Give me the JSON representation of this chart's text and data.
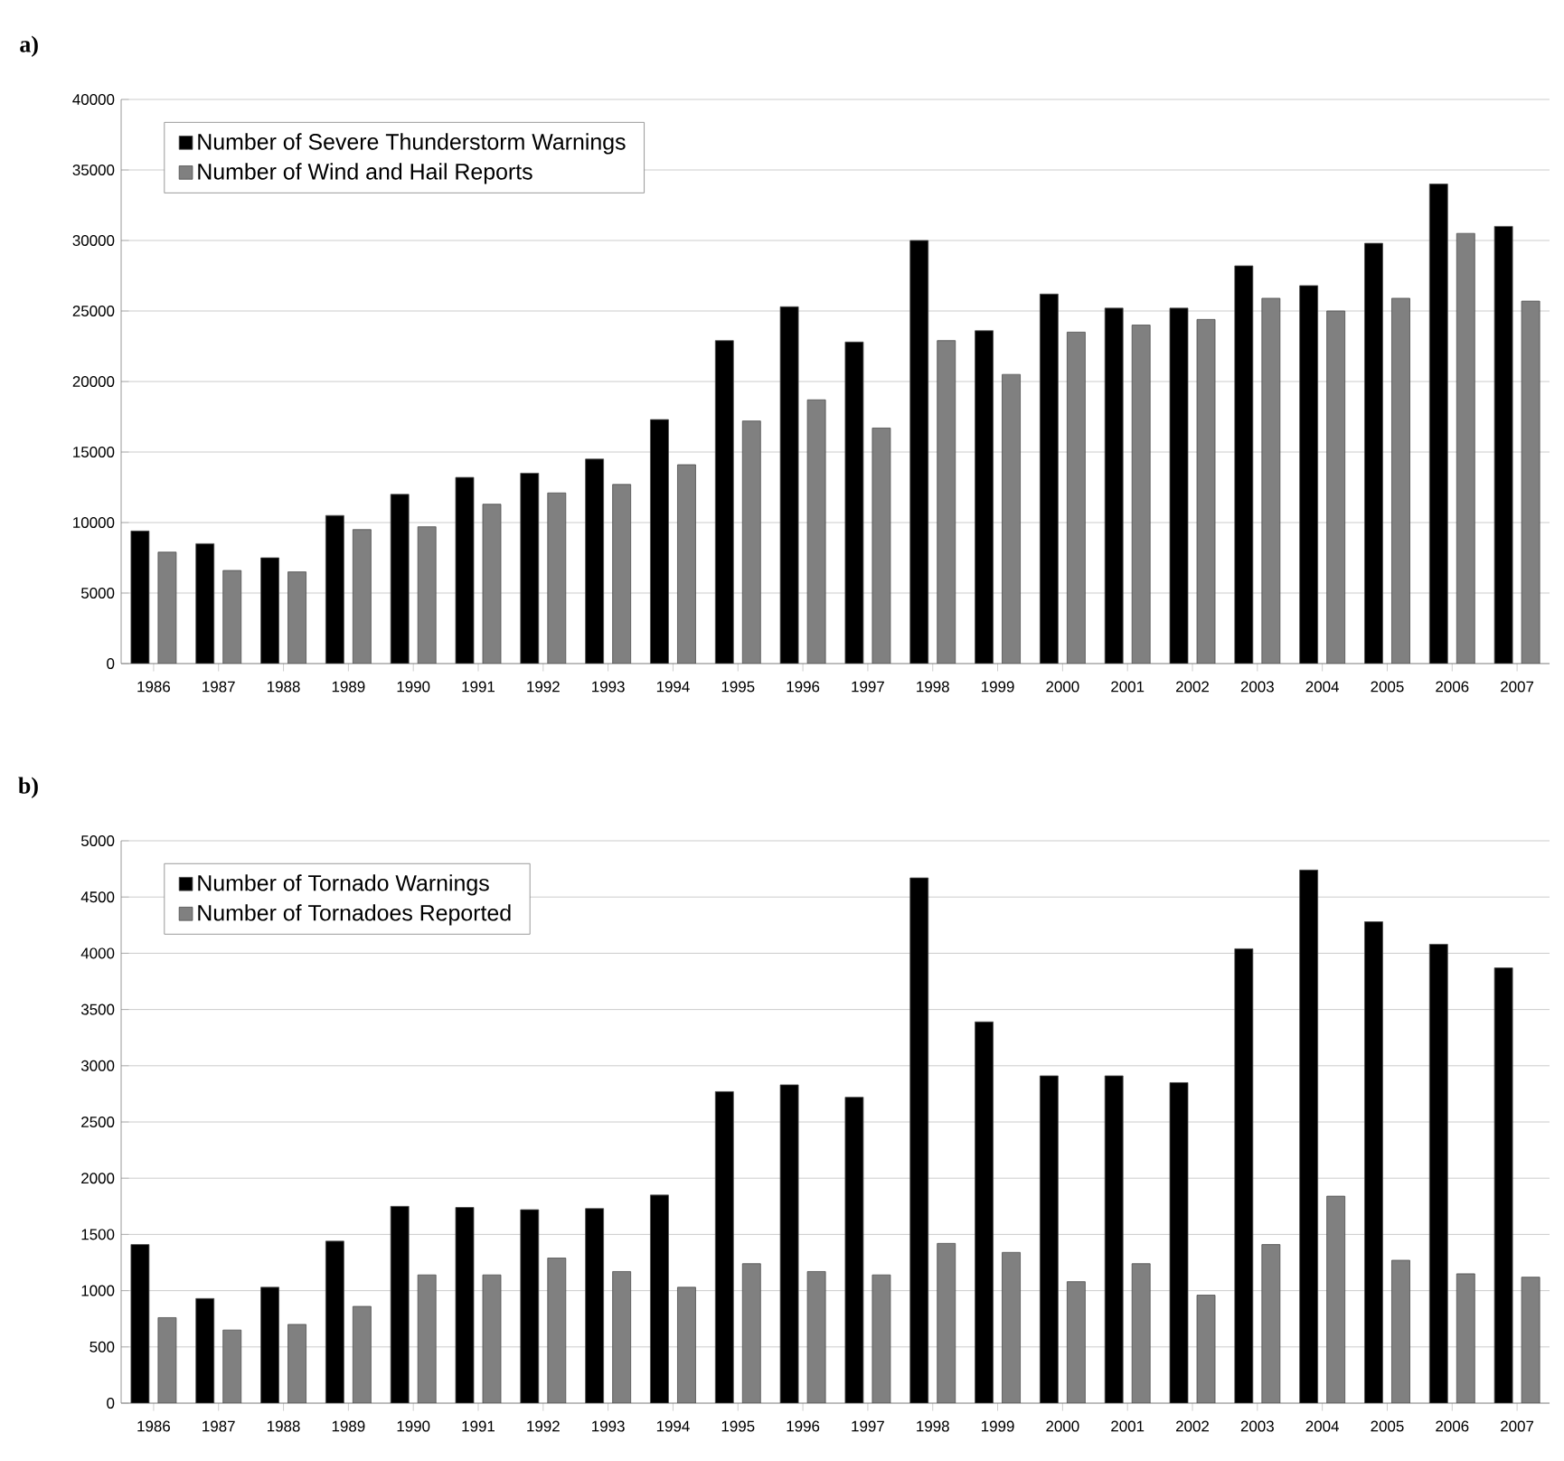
{
  "chart_data": [
    {
      "type": "bar",
      "title": "a)",
      "categories": [
        "1986",
        "1987",
        "1988",
        "1989",
        "1990",
        "1991",
        "1992",
        "1993",
        "1994",
        "1995",
        "1996",
        "1997",
        "1998",
        "1999",
        "2000",
        "2001",
        "2002",
        "2003",
        "2004",
        "2005",
        "2006",
        "2007"
      ],
      "series": [
        {
          "name": "Number of Severe Thunderstorm Warnings",
          "color": "#000000",
          "values": [
            9400,
            8500,
            7500,
            10500,
            12000,
            13200,
            13500,
            14500,
            17300,
            22900,
            25300,
            22800,
            30000,
            23600,
            26200,
            25200,
            25200,
            28200,
            26800,
            29800,
            34000,
            31000
          ]
        },
        {
          "name": "Number of Wind and Hail Reports",
          "color": "#808080",
          "values": [
            7900,
            6600,
            6500,
            9500,
            9700,
            11300,
            12100,
            12700,
            14100,
            17200,
            18700,
            16700,
            22900,
            20500,
            23500,
            24000,
            24400,
            25900,
            25000,
            25900,
            30500,
            25700
          ]
        }
      ],
      "ylim": [
        0,
        40000
      ],
      "yticks": [
        0,
        5000,
        10000,
        15000,
        20000,
        25000,
        30000,
        35000,
        40000
      ],
      "grid": "y",
      "legend": "top left"
    },
    {
      "type": "bar",
      "title": "b)",
      "categories": [
        "1986",
        "1987",
        "1988",
        "1989",
        "1990",
        "1991",
        "1992",
        "1993",
        "1994",
        "1995",
        "1996",
        "1997",
        "1998",
        "1999",
        "2000",
        "2001",
        "2002",
        "2003",
        "2004",
        "2005",
        "2006",
        "2007"
      ],
      "series": [
        {
          "name": "Number of Tornado Warnings",
          "color": "#000000",
          "values": [
            1410,
            930,
            1030,
            1440,
            1750,
            1740,
            1720,
            1730,
            1850,
            2770,
            2830,
            2720,
            4670,
            3390,
            2910,
            2910,
            2850,
            4040,
            4740,
            4280,
            4080,
            3870
          ]
        },
        {
          "name": "Number of Tornadoes Reported",
          "color": "#808080",
          "values": [
            760,
            650,
            700,
            860,
            1140,
            1140,
            1290,
            1170,
            1030,
            1240,
            1170,
            1140,
            1420,
            1340,
            1080,
            1240,
            960,
            1410,
            1840,
            1270,
            1150,
            1120
          ]
        }
      ],
      "ylim": [
        0,
        5000
      ],
      "yticks": [
        0,
        500,
        1000,
        1500,
        2000,
        2500,
        3000,
        3500,
        4000,
        4500,
        5000
      ],
      "grid": "y",
      "legend": "top left"
    }
  ]
}
